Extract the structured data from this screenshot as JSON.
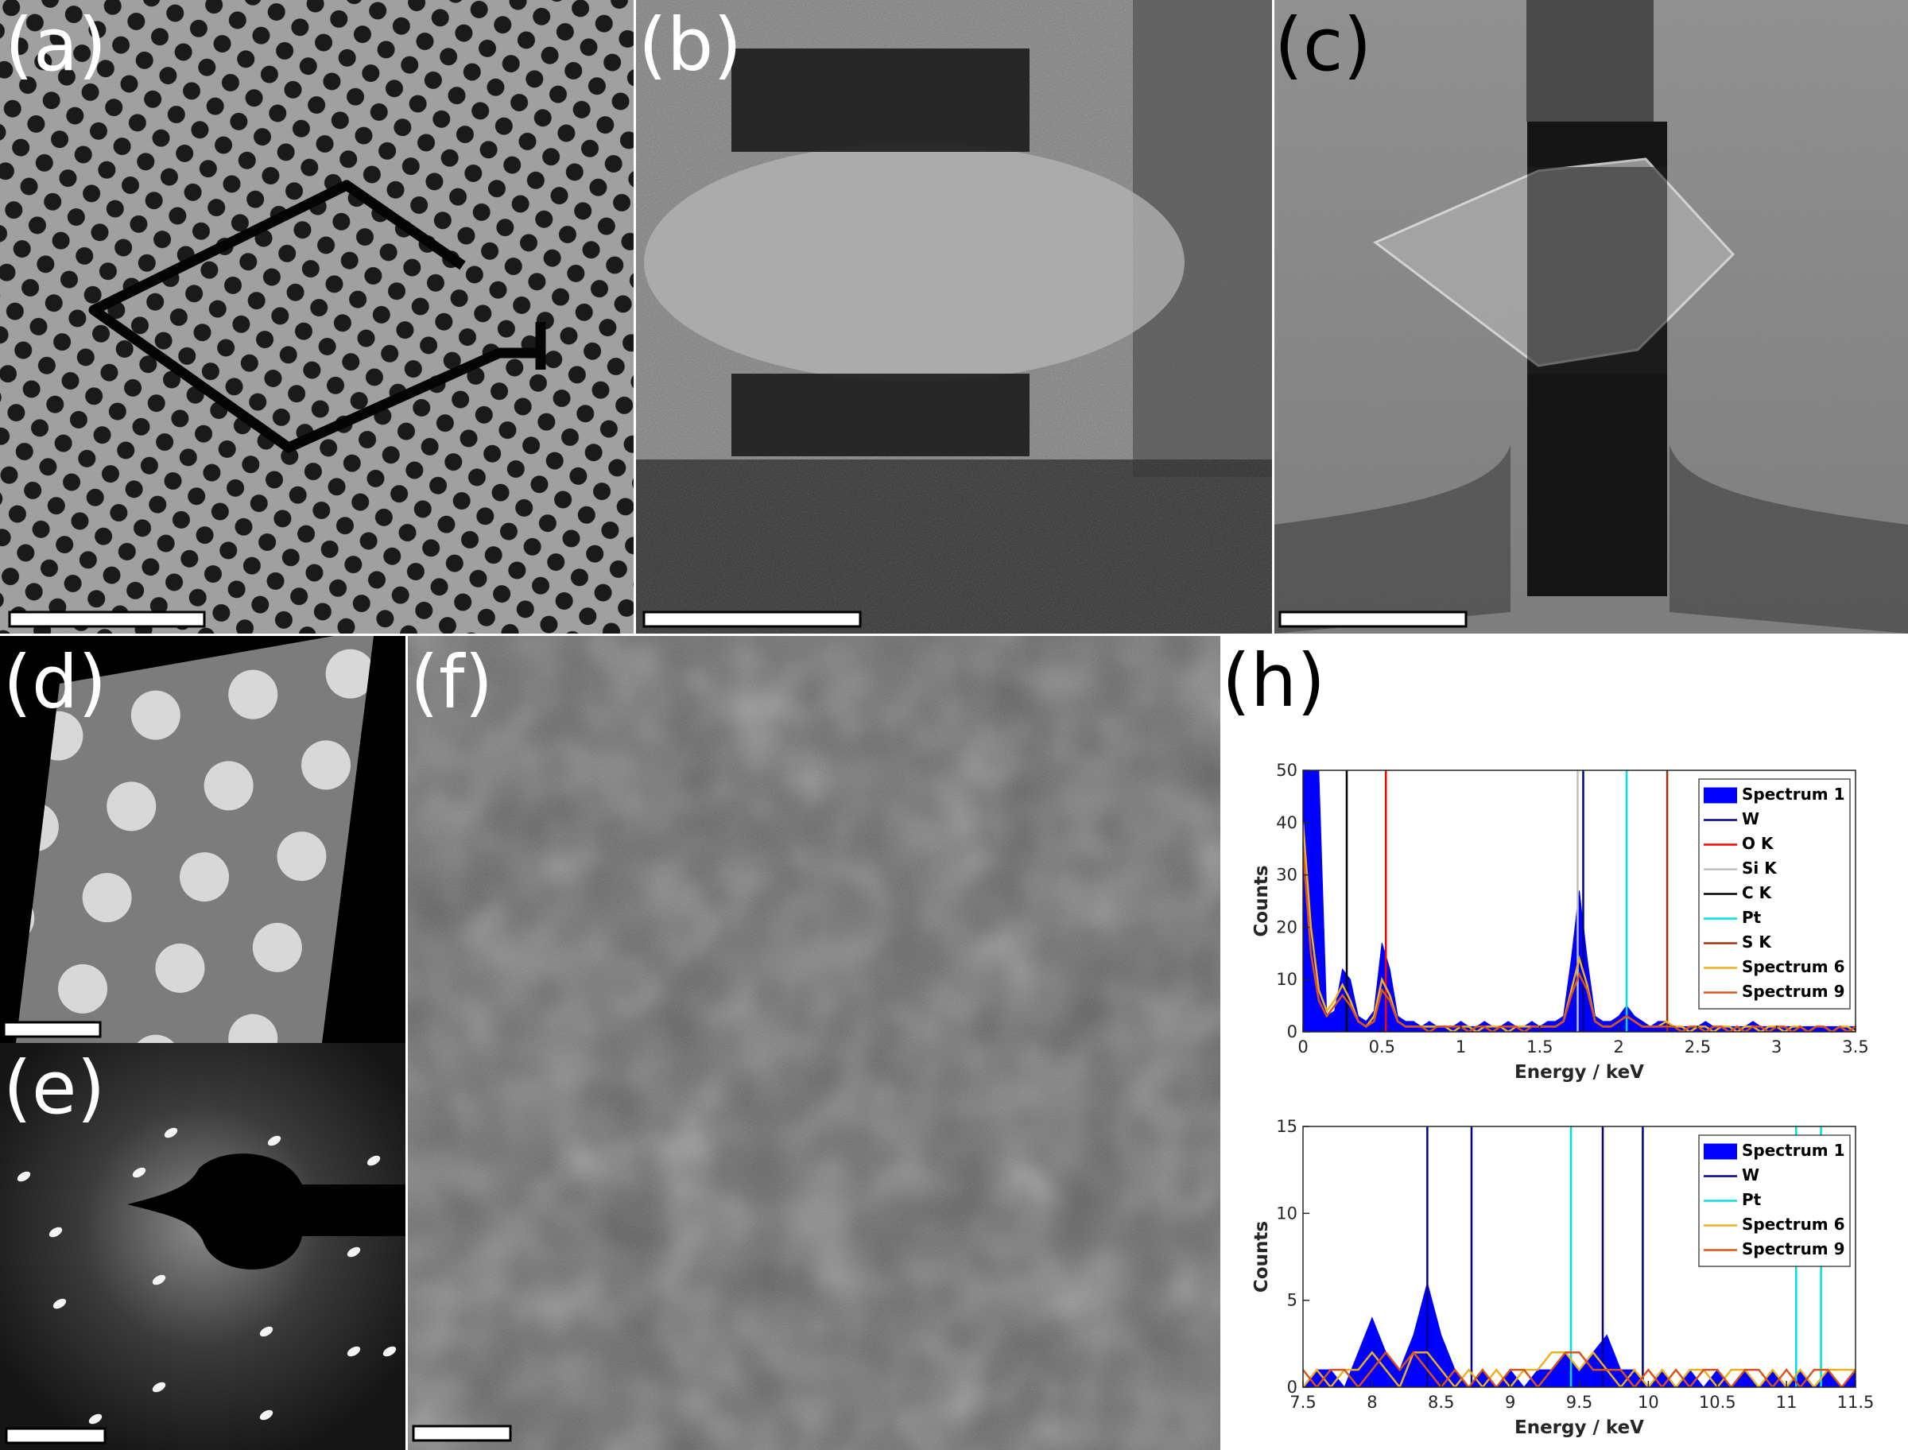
{
  "panels": [
    {
      "label": "(a)"
    },
    {
      "label": "(b)"
    },
    {
      "label": "(c)"
    },
    {
      "label": "(d)"
    },
    {
      "label": "(e)"
    },
    {
      "label": "(f)"
    },
    {
      "label": "(h)"
    }
  ],
  "chart_data": [
    {
      "type": "line",
      "xlabel": "Energy / keV",
      "ylabel": "Counts",
      "x": [
        0,
        0.05,
        0.1,
        0.15,
        0.2,
        0.25,
        0.3,
        0.35,
        0.4,
        0.45,
        0.5,
        0.55,
        0.6,
        0.65,
        0.7,
        0.75,
        0.8,
        0.85,
        0.9,
        0.95,
        1,
        1.05,
        1.1,
        1.15,
        1.2,
        1.25,
        1.3,
        1.35,
        1.4,
        1.45,
        1.5,
        1.55,
        1.6,
        1.65,
        1.7,
        1.75,
        1.8,
        1.85,
        1.9,
        1.95,
        2,
        2.05,
        2.1,
        2.15,
        2.2,
        2.25,
        2.3,
        2.35,
        2.4,
        2.45,
        2.5,
        2.55,
        2.6,
        2.65,
        2.7,
        2.75,
        2.8,
        2.85,
        2.9,
        2.95,
        3,
        3.05,
        3.1,
        3.15,
        3.2,
        3.25,
        3.3,
        3.35,
        3.4,
        3.45,
        3.5
      ],
      "xlim": [
        0,
        3.5
      ],
      "xticks": [
        0,
        0.5,
        1,
        1.5,
        2,
        2.5,
        3,
        3.5
      ],
      "ylim": [
        0,
        50
      ],
      "yticks": [
        0,
        10,
        20,
        30,
        40,
        50
      ],
      "legend": "upper right",
      "series": [
        {
          "name": "Spectrum 1",
          "color": "#0000ff",
          "fill": true,
          "values": [
            50,
            50,
            50,
            3,
            4,
            12,
            10,
            3,
            2,
            4,
            17,
            12,
            3,
            2,
            2,
            1,
            2,
            1,
            1,
            1,
            2,
            1,
            1,
            2,
            1,
            1,
            2,
            1,
            1,
            2,
            1,
            2,
            2,
            3,
            14,
            27,
            14,
            3,
            2,
            2,
            3,
            5,
            3,
            2,
            1,
            2,
            2,
            1,
            1,
            1,
            1,
            2,
            1,
            1,
            1,
            1,
            1,
            2,
            1,
            1,
            1,
            1,
            1,
            1,
            1,
            1,
            1,
            1,
            1,
            1,
            1
          ]
        },
        {
          "name": "W",
          "color": "#00008b",
          "energies": [
            1.775
          ]
        },
        {
          "name": "O K",
          "color": "#ff0000",
          "energies": [
            0.525
          ]
        },
        {
          "name": "Si K",
          "color": "#c0c0c0",
          "energies": [
            1.74
          ]
        },
        {
          "name": "C K",
          "color": "#000000",
          "energies": [
            0.277
          ]
        },
        {
          "name": "Pt",
          "color": "#00e0e0",
          "energies": [
            2.05
          ]
        },
        {
          "name": "S K",
          "color": "#a0300a",
          "energies": [
            2.307
          ]
        },
        {
          "name": "Spectrum 6",
          "color": "#edb120",
          "values": [
            40,
            20,
            8,
            4,
            6,
            9,
            6,
            2,
            1,
            3,
            10,
            7,
            2,
            1,
            1,
            1,
            1,
            1,
            1,
            0,
            1,
            1,
            0,
            1,
            1,
            1,
            0,
            1,
            1,
            1,
            1,
            1,
            1,
            2,
            8,
            14,
            9,
            2,
            1,
            1,
            2,
            3,
            2,
            1,
            1,
            1,
            2,
            1,
            1,
            0,
            1,
            1,
            0,
            1,
            1,
            0,
            1,
            1,
            0,
            1,
            1,
            0,
            1,
            1,
            0,
            1,
            1,
            0,
            1,
            1,
            0
          ]
        },
        {
          "name": "Spectrum 9",
          "color": "#d95319",
          "values": [
            35,
            15,
            6,
            3,
            5,
            7,
            5,
            2,
            1,
            2,
            8,
            6,
            2,
            1,
            1,
            1,
            0,
            1,
            1,
            1,
            1,
            0,
            1,
            1,
            0,
            1,
            1,
            1,
            0,
            1,
            1,
            1,
            1,
            2,
            7,
            11,
            8,
            2,
            1,
            1,
            2,
            3,
            2,
            1,
            1,
            1,
            1,
            1,
            0,
            1,
            1,
            0,
            1,
            1,
            0,
            1,
            0,
            1,
            1,
            0,
            1,
            1,
            0,
            1,
            0,
            1,
            1,
            0,
            1,
            0,
            1
          ]
        }
      ]
    },
    {
      "type": "line",
      "xlabel": "Energy / keV",
      "ylabel": "Counts",
      "x": [
        7.5,
        7.6,
        7.7,
        7.8,
        7.9,
        8,
        8.1,
        8.2,
        8.3,
        8.4,
        8.5,
        8.6,
        8.7,
        8.8,
        8.9,
        9,
        9.1,
        9.2,
        9.3,
        9.4,
        9.5,
        9.6,
        9.7,
        9.8,
        9.9,
        10,
        10.1,
        10.2,
        10.3,
        10.4,
        10.5,
        10.6,
        10.7,
        10.8,
        10.9,
        11,
        11.1,
        11.2,
        11.3,
        11.4,
        11.5
      ],
      "xlim": [
        7.5,
        11.5
      ],
      "xticks": [
        7.5,
        8,
        8.5,
        9,
        9.5,
        10,
        10.5,
        11,
        11.5
      ],
      "ylim": [
        0,
        15
      ],
      "yticks": [
        0,
        5,
        10,
        15
      ],
      "legend": "upper right",
      "series": [
        {
          "name": "Spectrum 1",
          "color": "#0000ff",
          "fill": true,
          "values": [
            0,
            1,
            1,
            0,
            2,
            4,
            2,
            1,
            3,
            6,
            3,
            1,
            0,
            1,
            0,
            1,
            0,
            1,
            1,
            2,
            1,
            2,
            3,
            1,
            1,
            0,
            1,
            0,
            1,
            0,
            1,
            0,
            1,
            0,
            1,
            0,
            1,
            0,
            1,
            0,
            1
          ]
        },
        {
          "name": "W",
          "color": "#00008b",
          "energies": [
            8.4,
            8.72,
            9.67,
            9.96
          ]
        },
        {
          "name": "Pt",
          "color": "#00e0e0",
          "energies": [
            9.44,
            11.07,
            11.25
          ]
        },
        {
          "name": "Spectrum 6",
          "color": "#edb120",
          "values": [
            0,
            1,
            0,
            1,
            1,
            2,
            1,
            0,
            2,
            2,
            1,
            0,
            1,
            0,
            1,
            0,
            1,
            1,
            2,
            2,
            1,
            2,
            1,
            0,
            1,
            0,
            1,
            0,
            1,
            1,
            0,
            1,
            1,
            0,
            1,
            0,
            1,
            0,
            1,
            1,
            1
          ]
        },
        {
          "name": "Spectrum 9",
          "color": "#d95319",
          "values": [
            1,
            0,
            1,
            1,
            0,
            1,
            2,
            1,
            2,
            1,
            0,
            1,
            0,
            1,
            0,
            1,
            1,
            0,
            1,
            2,
            2,
            1,
            1,
            1,
            0,
            1,
            0,
            1,
            0,
            1,
            1,
            0,
            1,
            1,
            0,
            1,
            0,
            1,
            1,
            0,
            1
          ]
        }
      ]
    }
  ]
}
